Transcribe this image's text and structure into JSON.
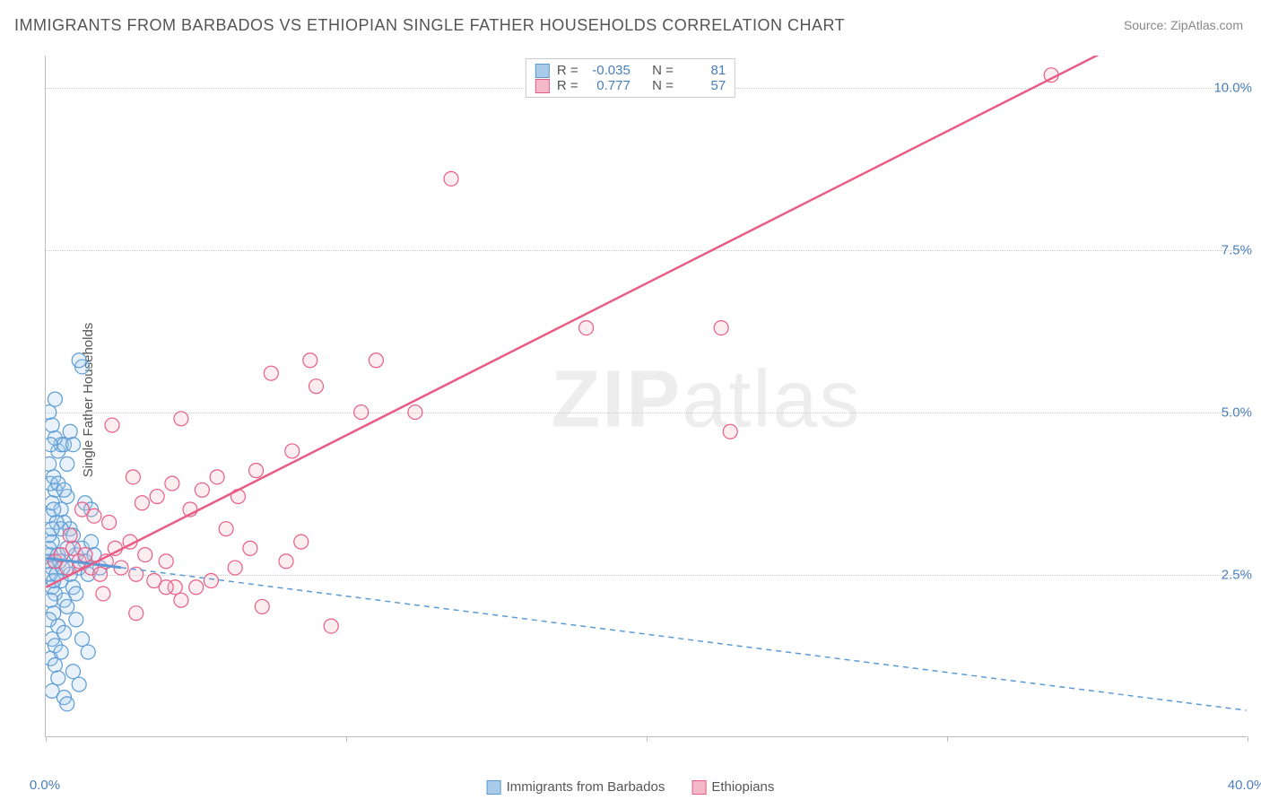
{
  "title": "IMMIGRANTS FROM BARBADOS VS ETHIOPIAN SINGLE FATHER HOUSEHOLDS CORRELATION CHART",
  "source": "Source: ZipAtlas.com",
  "ylabel": "Single Father Households",
  "watermark_bold": "ZIP",
  "watermark_rest": "atlas",
  "chart": {
    "type": "scatter",
    "xlim": [
      0,
      40
    ],
    "ylim": [
      0,
      10.5
    ],
    "background_color": "#ffffff",
    "grid_color": "#cccccc",
    "axis_color": "#bbbbbb",
    "tick_label_color": "#4a7ebb",
    "label_color": "#555555",
    "title_fontsize": 18,
    "label_fontsize": 15,
    "tick_fontsize": 15,
    "marker_radius": 8,
    "marker_stroke_width": 1.2,
    "fill_opacity": 0.25,
    "x_ticks": [
      0,
      10,
      20,
      30,
      40
    ],
    "x_tick_labels": [
      "0.0%",
      "",
      "",
      "",
      "40.0%"
    ],
    "y_ticks": [
      2.5,
      5.0,
      7.5,
      10.0
    ],
    "y_tick_labels": [
      "2.5%",
      "5.0%",
      "7.5%",
      "10.0%"
    ],
    "series": [
      {
        "name": "Immigrants from Barbados",
        "color_stroke": "#5b9bd5",
        "color_fill": "#a8cbea",
        "R_label": "R = ",
        "R": "-0.035",
        "N_label": "N = ",
        "N": "81",
        "regression": {
          "x1": 0,
          "y1": 2.75,
          "x2": 40,
          "y2": 0.4,
          "solid_until_x": 2.5,
          "dash": "6,5",
          "width": 2
        },
        "points": [
          [
            0.1,
            2.7
          ],
          [
            0.15,
            2.8
          ],
          [
            0.2,
            2.6
          ],
          [
            0.1,
            2.9
          ],
          [
            0.15,
            2.5
          ],
          [
            0.2,
            3.0
          ],
          [
            0.1,
            3.1
          ],
          [
            0.3,
            2.7
          ],
          [
            0.2,
            2.3
          ],
          [
            0.3,
            2.2
          ],
          [
            0.25,
            1.9
          ],
          [
            0.2,
            1.5
          ],
          [
            0.15,
            1.2
          ],
          [
            0.3,
            1.1
          ],
          [
            0.4,
            0.9
          ],
          [
            0.2,
            0.7
          ],
          [
            0.6,
            0.6
          ],
          [
            0.7,
            0.5
          ],
          [
            0.1,
            3.4
          ],
          [
            0.2,
            3.6
          ],
          [
            0.3,
            3.8
          ],
          [
            0.15,
            3.9
          ],
          [
            0.25,
            4.0
          ],
          [
            0.1,
            4.2
          ],
          [
            0.5,
            3.5
          ],
          [
            0.6,
            3.3
          ],
          [
            0.7,
            3.7
          ],
          [
            0.8,
            3.2
          ],
          [
            0.4,
            4.4
          ],
          [
            0.5,
            4.5
          ],
          [
            0.6,
            4.5
          ],
          [
            0.3,
            4.6
          ],
          [
            0.1,
            5.0
          ],
          [
            0.8,
            4.7
          ],
          [
            1.2,
            5.7
          ],
          [
            1.1,
            5.8
          ],
          [
            0.9,
            4.5
          ],
          [
            1.0,
            2.8
          ],
          [
            1.1,
            2.6
          ],
          [
            1.2,
            2.9
          ],
          [
            1.3,
            2.7
          ],
          [
            1.4,
            2.5
          ],
          [
            1.5,
            3.0
          ],
          [
            1.6,
            2.8
          ],
          [
            1.8,
            2.6
          ],
          [
            1.3,
            3.6
          ],
          [
            1.5,
            3.5
          ],
          [
            0.9,
            3.1
          ],
          [
            1.0,
            1.8
          ],
          [
            1.2,
            1.5
          ],
          [
            1.4,
            1.3
          ],
          [
            0.9,
            1.0
          ],
          [
            1.1,
            0.8
          ],
          [
            0.5,
            2.4
          ],
          [
            0.6,
            2.1
          ],
          [
            0.7,
            2.0
          ],
          [
            0.4,
            2.8
          ],
          [
            0.35,
            3.3
          ],
          [
            0.5,
            3.2
          ],
          [
            0.2,
            4.8
          ],
          [
            0.7,
            2.9
          ],
          [
            0.8,
            2.5
          ],
          [
            0.9,
            2.3
          ],
          [
            1.0,
            2.2
          ],
          [
            0.4,
            1.7
          ],
          [
            0.3,
            1.4
          ],
          [
            0.6,
            1.6
          ],
          [
            0.5,
            1.3
          ],
          [
            0.15,
            2.1
          ],
          [
            0.1,
            1.8
          ],
          [
            0.2,
            3.2
          ],
          [
            0.25,
            3.5
          ],
          [
            0.4,
            3.9
          ],
          [
            0.6,
            3.8
          ],
          [
            0.15,
            4.5
          ],
          [
            0.7,
            4.2
          ],
          [
            0.3,
            5.2
          ],
          [
            0.25,
            2.4
          ],
          [
            0.35,
            2.5
          ],
          [
            0.45,
            2.7
          ],
          [
            0.55,
            2.6
          ]
        ]
      },
      {
        "name": "Ethiopians",
        "color_stroke": "#e85d85",
        "color_fill": "#f5b8c9",
        "R_label": "R = ",
        "R": "0.777",
        "N_label": "N = ",
        "N": "57",
        "regression": {
          "x1": 0,
          "y1": 2.3,
          "x2": 38,
          "y2": 11.2,
          "dash": "none",
          "width": 2.5
        },
        "points": [
          [
            0.3,
            2.7
          ],
          [
            0.5,
            2.8
          ],
          [
            0.7,
            2.6
          ],
          [
            0.9,
            2.9
          ],
          [
            1.1,
            2.7
          ],
          [
            1.3,
            2.8
          ],
          [
            1.5,
            2.6
          ],
          [
            1.8,
            2.5
          ],
          [
            2.0,
            2.7
          ],
          [
            2.3,
            2.9
          ],
          [
            2.5,
            2.6
          ],
          [
            2.8,
            3.0
          ],
          [
            3.0,
            2.5
          ],
          [
            3.3,
            2.8
          ],
          [
            3.6,
            2.4
          ],
          [
            4.0,
            2.7
          ],
          [
            4.3,
            2.3
          ],
          [
            4.5,
            2.1
          ],
          [
            5.0,
            2.3
          ],
          [
            5.5,
            2.4
          ],
          [
            6.0,
            3.2
          ],
          [
            6.3,
            2.6
          ],
          [
            6.8,
            2.9
          ],
          [
            7.2,
            2.0
          ],
          [
            8.0,
            2.7
          ],
          [
            8.5,
            3.0
          ],
          [
            9.5,
            1.7
          ],
          [
            1.2,
            3.5
          ],
          [
            1.6,
            3.4
          ],
          [
            2.1,
            3.3
          ],
          [
            2.9,
            4.0
          ],
          [
            3.2,
            3.6
          ],
          [
            3.7,
            3.7
          ],
          [
            4.2,
            3.9
          ],
          [
            4.8,
            3.5
          ],
          [
            2.2,
            4.8
          ],
          [
            5.2,
            3.8
          ],
          [
            5.7,
            4.0
          ],
          [
            6.4,
            3.7
          ],
          [
            7.0,
            4.1
          ],
          [
            4.5,
            4.9
          ],
          [
            8.2,
            4.4
          ],
          [
            9.0,
            5.4
          ],
          [
            10.5,
            5.0
          ],
          [
            11.0,
            5.8
          ],
          [
            12.3,
            5.0
          ],
          [
            7.5,
            5.6
          ],
          [
            8.8,
            5.8
          ],
          [
            13.5,
            8.6
          ],
          [
            18.0,
            6.3
          ],
          [
            22.5,
            6.3
          ],
          [
            22.8,
            4.7
          ],
          [
            33.5,
            10.2
          ],
          [
            1.9,
            2.2
          ],
          [
            3.0,
            1.9
          ],
          [
            4.0,
            2.3
          ],
          [
            0.8,
            3.1
          ]
        ]
      }
    ],
    "bottom_legend": [
      {
        "label": "Immigrants from Barbados",
        "fill": "#a8cbea",
        "stroke": "#5b9bd5"
      },
      {
        "label": "Ethiopians",
        "fill": "#f5b8c9",
        "stroke": "#e85d85"
      }
    ]
  }
}
